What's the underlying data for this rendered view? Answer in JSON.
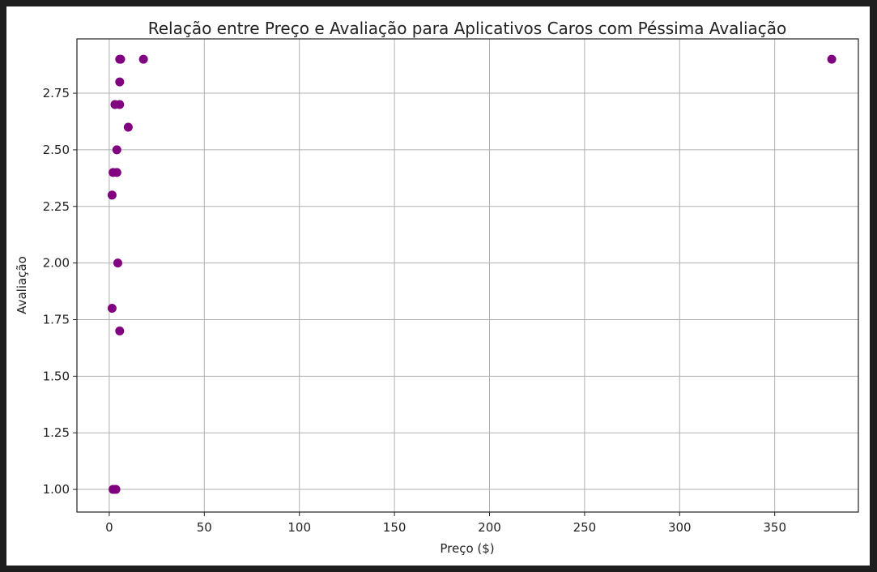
{
  "chart_data": {
    "type": "scatter",
    "title": "Relação entre Preço e Avaliação para Aplicativos Caros com Péssima Avaliação",
    "xlabel": "Preço ($)",
    "ylabel": "Avaliação",
    "xlim": [
      -17,
      394
    ],
    "ylim": [
      0.9,
      2.99
    ],
    "xticks": [
      0,
      50,
      100,
      150,
      200,
      250,
      300,
      350
    ],
    "xtick_labels": [
      "0",
      "50",
      "100",
      "150",
      "200",
      "250",
      "300",
      "350"
    ],
    "yticks": [
      1.0,
      1.25,
      1.5,
      1.75,
      2.0,
      2.25,
      2.5,
      2.75
    ],
    "ytick_labels": [
      "1.00",
      "1.25",
      "1.50",
      "1.75",
      "2.00",
      "2.25",
      "2.50",
      "2.75"
    ],
    "grid": true,
    "marker_color": "#800080",
    "points": [
      {
        "x": 5.49,
        "y": 2.9
      },
      {
        "x": 5.99,
        "y": 2.9
      },
      {
        "x": 17.99,
        "y": 2.9
      },
      {
        "x": 379.99,
        "y": 2.9
      },
      {
        "x": 5.49,
        "y": 2.8
      },
      {
        "x": 2.99,
        "y": 2.7
      },
      {
        "x": 5.49,
        "y": 2.7
      },
      {
        "x": 9.99,
        "y": 2.6
      },
      {
        "x": 3.99,
        "y": 2.5
      },
      {
        "x": 1.99,
        "y": 2.4
      },
      {
        "x": 3.99,
        "y": 2.4
      },
      {
        "x": 1.49,
        "y": 2.3
      },
      {
        "x": 4.49,
        "y": 2.0
      },
      {
        "x": 1.49,
        "y": 1.8
      },
      {
        "x": 5.49,
        "y": 1.7
      },
      {
        "x": 1.99,
        "y": 1.0
      },
      {
        "x": 3.49,
        "y": 1.0
      }
    ]
  }
}
